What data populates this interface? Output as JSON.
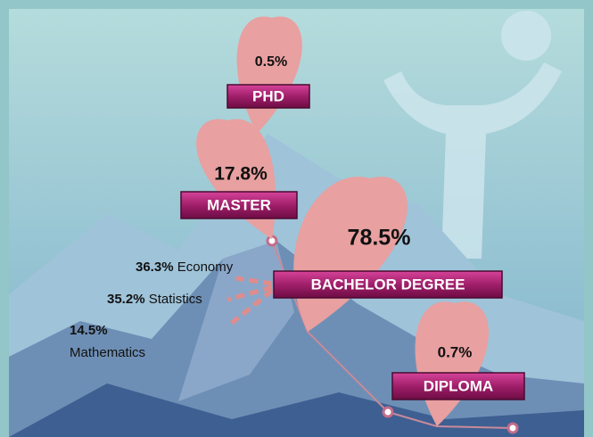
{
  "levels": [
    {
      "label": "PHD",
      "share": "0.5%"
    },
    {
      "label": "MASTER",
      "share": "17.8%"
    },
    {
      "label": "BACHELOR DEGREE",
      "share": "78.5%"
    },
    {
      "label": "DIPLOMA",
      "share": "0.7%"
    }
  ],
  "bachelor_fields": [
    {
      "share": "36.3%",
      "field": "Economy"
    },
    {
      "share": "35.2%",
      "field": "Statistics"
    },
    {
      "share": "14.5%",
      "field": "Mathematics"
    }
  ]
}
